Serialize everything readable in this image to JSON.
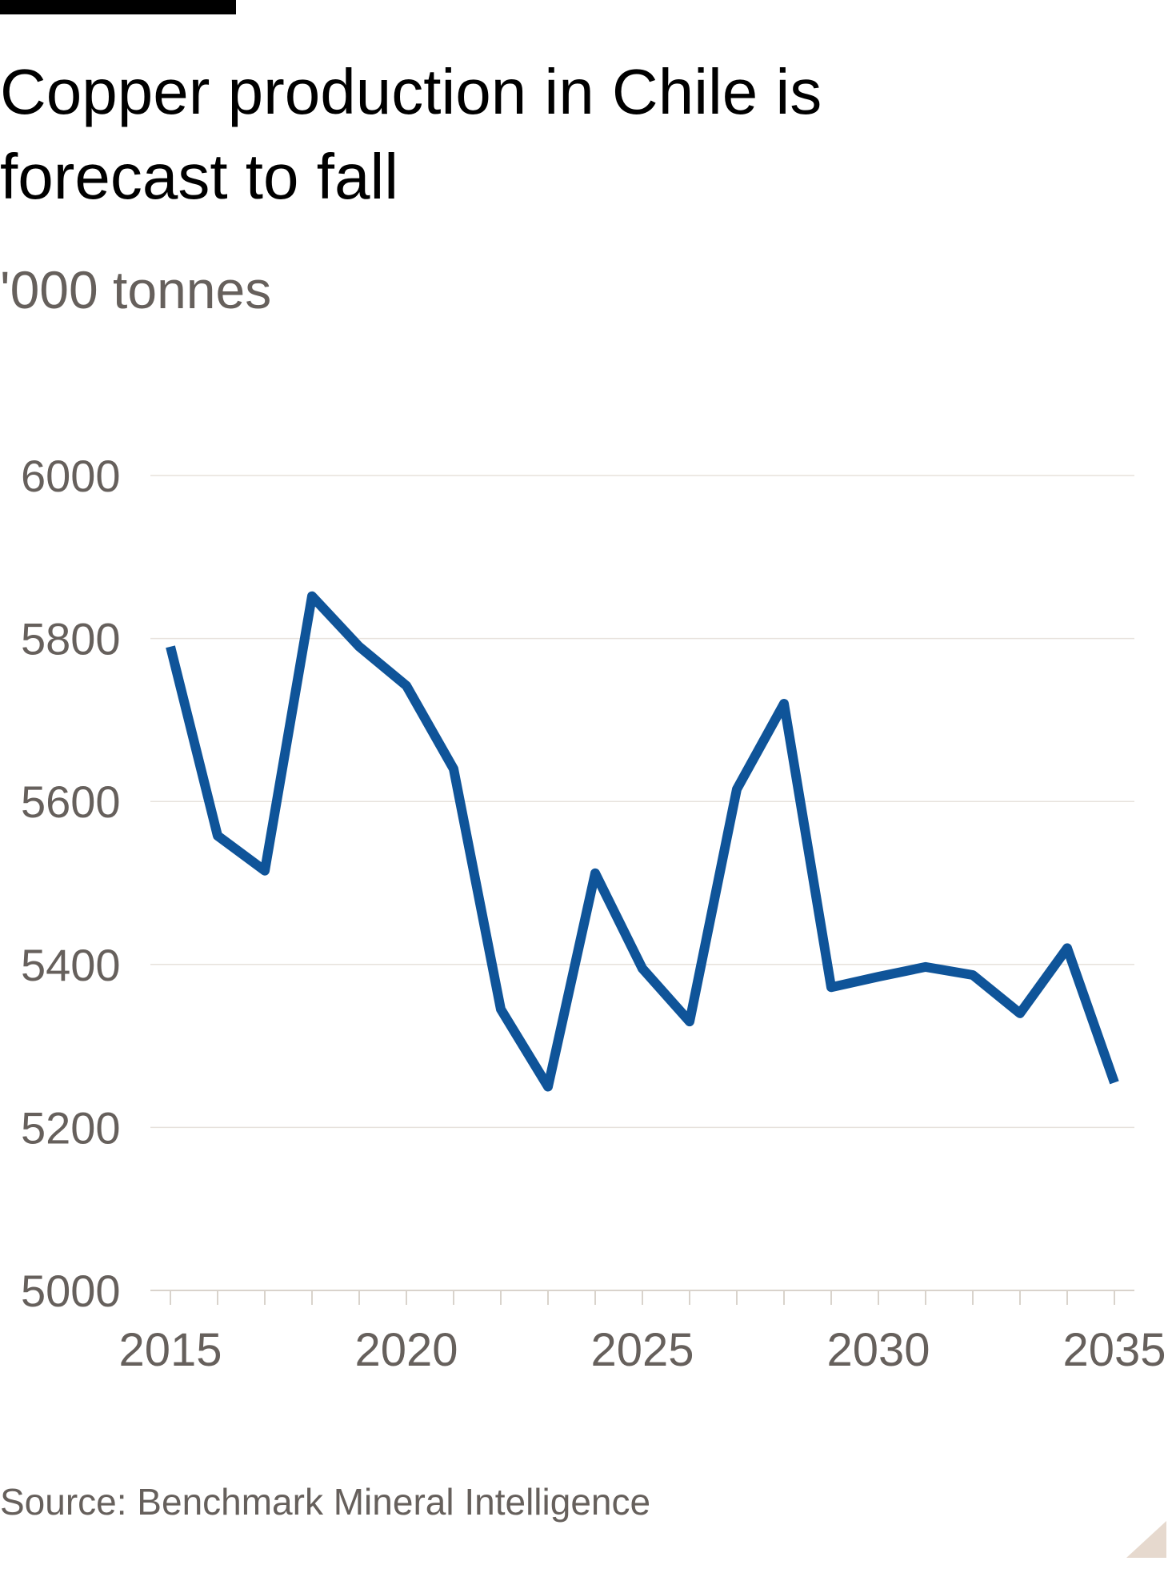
{
  "header": {
    "title": "Copper production in Chile is forecast to fall",
    "subtitle": "'000 tonnes"
  },
  "footer": {
    "source": "Source: Benchmark Mineral Intelligence"
  },
  "colors": {
    "line": "#0f5499",
    "grid": "#e7e2dc",
    "axis_text": "#66605c",
    "corner_mark": "#e6d9ce"
  },
  "chart_data": {
    "type": "line",
    "title": "Copper production in Chile is forecast to fall",
    "subtitle": "'000 tonnes",
    "xlabel": "",
    "ylabel": "",
    "xlim": [
      2015,
      2035
    ],
    "ylim": [
      5000,
      6000
    ],
    "yticks": [
      5000,
      5200,
      5400,
      5600,
      5800,
      6000
    ],
    "xticks": [
      2015,
      2020,
      2025,
      2030,
      2035
    ],
    "grid": true,
    "legend": "none",
    "x": [
      2015,
      2016,
      2017,
      2018,
      2019,
      2020,
      2021,
      2022,
      2023,
      2024,
      2025,
      2026,
      2027,
      2028,
      2029,
      2030,
      2031,
      2032,
      2033,
      2034,
      2035
    ],
    "series": [
      {
        "values": [
          5790,
          5558,
          5515,
          5852,
          5790,
          5742,
          5640,
          5345,
          5250,
          5512,
          5395,
          5330,
          5615,
          5720,
          5372,
          5385,
          5397,
          5387,
          5340,
          5420,
          5255
        ]
      }
    ]
  }
}
